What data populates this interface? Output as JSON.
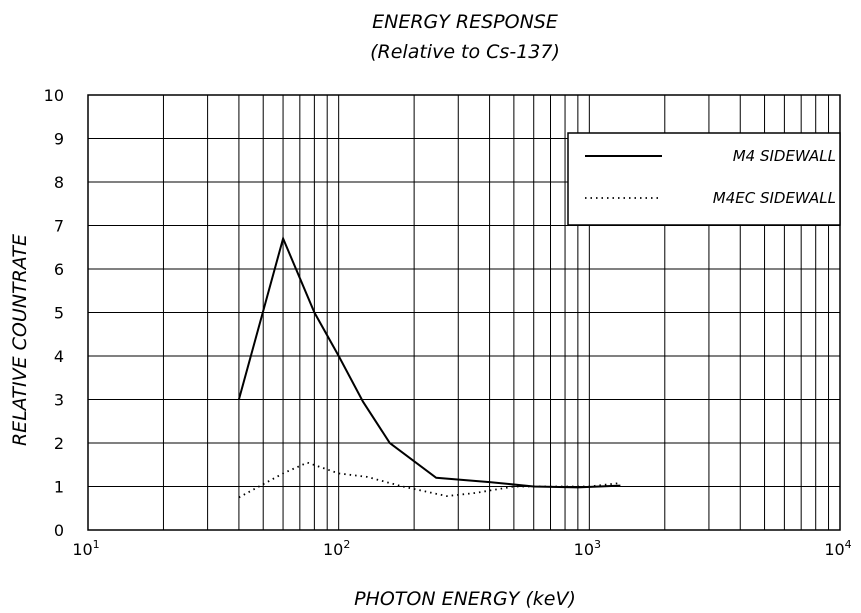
{
  "chart_data": {
    "type": "line",
    "title": "ENERGY RESPONSE",
    "subtitle": "(Relative to Cs-137)",
    "xlabel": "PHOTON ENERGY (keV)",
    "ylabel": "RELATIVE COUNTRATE",
    "xscale": "log",
    "xlim": [
      10,
      10000
    ],
    "ylim": [
      0,
      10
    ],
    "grid": true,
    "legend_position": "top-right",
    "x_ticks": [
      {
        "base": "10",
        "exp": "1",
        "value": 10
      },
      {
        "base": "10",
        "exp": "2",
        "value": 100
      },
      {
        "base": "10",
        "exp": "3",
        "value": 1000
      },
      {
        "base": "10",
        "exp": "4",
        "value": 10000
      }
    ],
    "y_ticks": [
      "0",
      "1",
      "2",
      "3",
      "4",
      "5",
      "6",
      "7",
      "8",
      "9",
      "10"
    ],
    "series": [
      {
        "name": "M4 SIDEWALL",
        "style": "solid",
        "color": "#000000",
        "points": [
          [
            40,
            3.0
          ],
          [
            60,
            6.7
          ],
          [
            80,
            5.0
          ],
          [
            100,
            4.0
          ],
          [
            125,
            2.95
          ],
          [
            160,
            2.0
          ],
          [
            245,
            1.2
          ],
          [
            400,
            1.1
          ],
          [
            600,
            1.0
          ],
          [
            900,
            0.98
          ],
          [
            1330,
            1.02
          ]
        ]
      },
      {
        "name": "M4EC SIDEWALL",
        "style": "dotted",
        "color": "#000000",
        "points": [
          [
            40,
            0.75
          ],
          [
            60,
            1.3
          ],
          [
            75,
            1.55
          ],
          [
            100,
            1.3
          ],
          [
            130,
            1.22
          ],
          [
            180,
            1.0
          ],
          [
            270,
            0.78
          ],
          [
            350,
            0.85
          ],
          [
            500,
            1.0
          ],
          [
            700,
            1.0
          ],
          [
            1000,
            1.0
          ],
          [
            1330,
            1.08
          ]
        ]
      }
    ]
  }
}
